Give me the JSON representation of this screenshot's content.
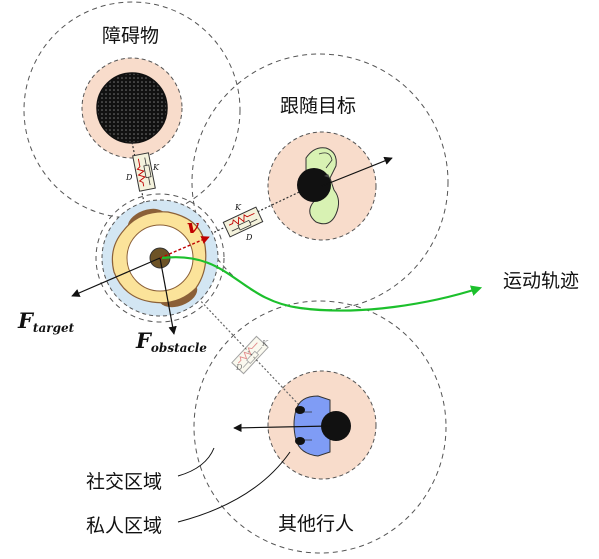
{
  "labels": {
    "obstacle": "障碍物",
    "follow_target": "跟随目标",
    "other_pedestrian": "其他行人",
    "motion_trajectory": "运动轨迹",
    "social_zone": "社交区域",
    "personal_zone": "私人区域"
  },
  "forces": {
    "target_main": "F",
    "target_sub": "target",
    "obstacle_main": "F",
    "obstacle_sub": "obstacle",
    "velocity": "v"
  },
  "springs": {
    "k_label": "K",
    "d_label": "D"
  },
  "colors": {
    "personal_zone_fill": "#f8dccb",
    "robot_zone_fill": "#d3e6f3",
    "robot_body": "#fbe39a",
    "robot_wheel": "#8b6038",
    "trajectory": "#1cc02c",
    "velocity_arrow": "#c00000",
    "target_shirt": "#d8f2b3",
    "pedestrian_shirt": "#7f9cf5"
  }
}
